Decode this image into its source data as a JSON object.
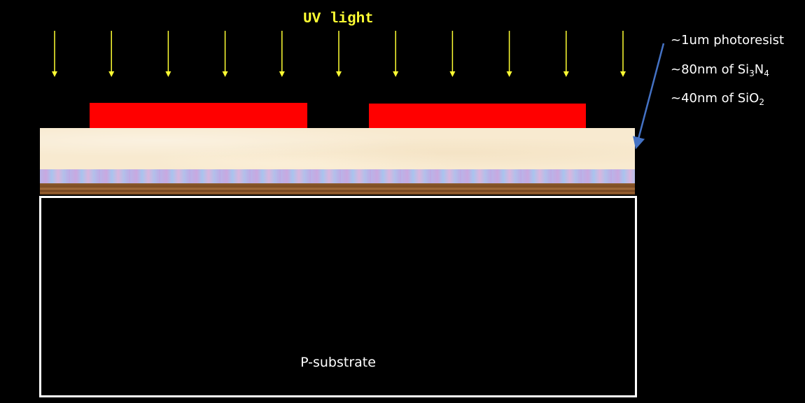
{
  "diagram": {
    "uv_label": "UV light",
    "arrow_count": 11,
    "substrate_label": "P-substrate",
    "legend": {
      "photoresist": {
        "text": "~1um photoresist"
      },
      "nitride": {
        "prefix": "~80nm of Si",
        "sub1": "3",
        "mid": "N",
        "sub2": "4"
      },
      "oxide": {
        "prefix": "~40nm of SiO",
        "sub1": "2"
      }
    },
    "colors": {
      "background": "#000000",
      "uv_arrows": "#ffff33",
      "photoresist": "#ff0000",
      "nitride": "#f8ead0",
      "oxide": "#b8b4e8",
      "substrate_surface": "#8b5a2b",
      "callout_arrow": "#4472c4",
      "text": "#ffffff"
    }
  }
}
